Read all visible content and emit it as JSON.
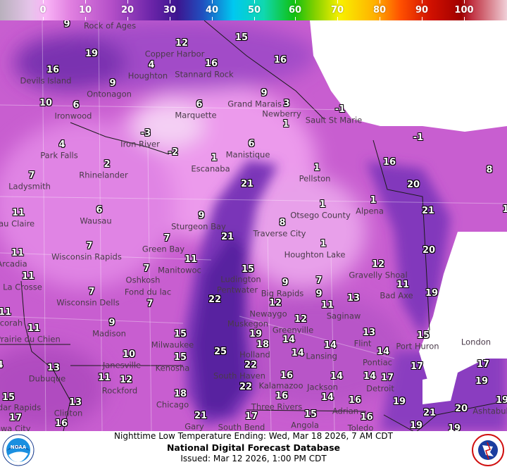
{
  "colorbar": {
    "ticks": [
      "0",
      "10",
      "20",
      "30",
      "40",
      "50",
      "60",
      "70",
      "80",
      "90",
      "100"
    ]
  },
  "footer": {
    "title": "Nighttime Low Temperature Ending: Wed, Mar 18 2026, 7 AM CDT",
    "product": "National Digital Forecast Database",
    "issued": "Issued: Mar 12 2026, 1:00 PM CDT"
  },
  "logos": {
    "left": "NOAA",
    "right": "NATIONAL WEATHER SERVICE"
  },
  "stations": [
    "9",
    "19",
    "16",
    "4",
    "12",
    "15",
    "16",
    "16",
    "9",
    "10",
    "6",
    "6",
    "9",
    "3",
    "1",
    "-1",
    "-3",
    "-1",
    "4",
    "-2",
    "6",
    "1",
    "16",
    "8",
    "2",
    "1",
    "7",
    "21",
    "20",
    "1",
    "1",
    "21",
    "6",
    "11",
    "9",
    "8",
    "21",
    "7",
    "7",
    "11",
    "1",
    "20",
    "11",
    "11",
    "7",
    "15",
    "12",
    "7",
    "11",
    "9",
    "9",
    "7",
    "7",
    "22",
    "13",
    "19",
    "11",
    "12",
    "11",
    "11",
    "12",
    "9",
    "19",
    "13",
    "15",
    "14",
    "15",
    "18",
    "14",
    "10",
    "14",
    "25",
    "14",
    "15",
    "13",
    "22",
    "17",
    "17",
    "11",
    "12",
    "16",
    "14",
    "14",
    "17",
    "22",
    "19",
    "18",
    "16",
    "14",
    "16",
    "19",
    "15",
    "13",
    "17",
    "17",
    "21",
    "21",
    "20",
    "16",
    "15",
    "16",
    "19",
    "19",
    "19",
    "4",
    "1"
  ],
  "cities": [
    "Rock of Ages",
    "Copper Harbor",
    "Houghton",
    "Stannard Rock",
    "Devils Island",
    "Ontonagon",
    "Ironwood",
    "Marquette",
    "Grand Marais",
    "Newberry",
    "Sault St Marie",
    "Iron River",
    "Park Falls",
    "Manistique",
    "Escanaba",
    "Rhinelander",
    "Pellston",
    "Ladysmith",
    "Alpena",
    "Otsego County",
    "Wausau",
    "Sturgeon Bay",
    "Eau Claire",
    "Traverse City",
    "Green Bay",
    "Wisconsin Rapids",
    "Houghton Lake",
    "Arcadia",
    "Manitowoc",
    "Oshkosh",
    "Ludington",
    "Gravelly Shoal",
    "La Crosse",
    "Pentwater",
    "Fond du lac",
    "Big Rapids",
    "Bad Axe",
    "Wisconsin Dells",
    "Saginaw",
    "Newaygo",
    "Decorah",
    "Muskegon",
    "Greenville",
    "Madison",
    "Prairie du Chien",
    "Flint",
    "Port Huron",
    "London",
    "Milwaukee",
    "Holland",
    "Lansing",
    "Pontiac",
    "Janesville",
    "Kenosha",
    "Dubuque",
    "South Haven",
    "Kalamazoo",
    "Jackson",
    "Detroit",
    "Rockford",
    "Chicago",
    "Three Rivers",
    "Adrian",
    "Cedar Rapids",
    "Clinton",
    "Ashtabula",
    "Iowa City",
    "South Bend",
    "Gary",
    "Angola",
    "Toledo"
  ],
  "colors": {
    "land_base": "#d46ad8",
    "light": "#f0b4f0",
    "lake_dark": "#5a1ea0",
    "lake_mid": "#8a3cc0",
    "no_data": "#ffffff"
  }
}
